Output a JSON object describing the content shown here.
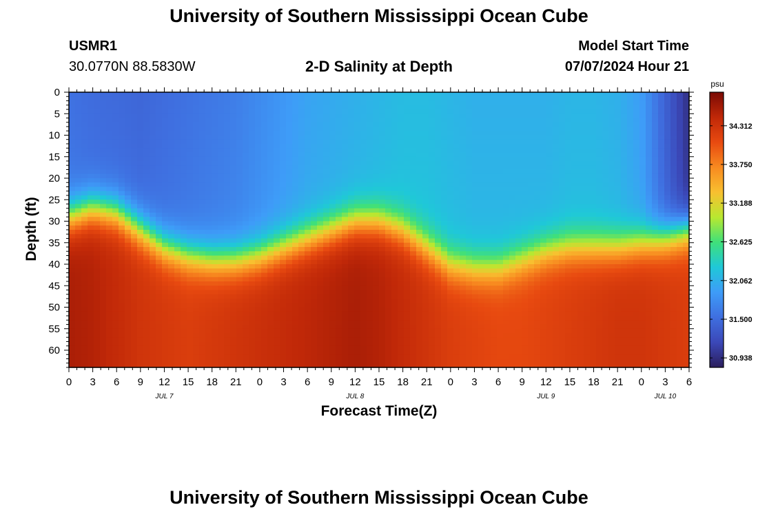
{
  "header": {
    "title": "University of Southern Mississippi Ocean Cube",
    "station_id": "USMR1",
    "station_coords": "30.0770N  88.5830W",
    "plot_title": "2-D Salinity at Depth",
    "model_start_label": "Model Start Time",
    "model_start_value": "07/07/2024 Hour 21"
  },
  "footer": {
    "title": "University of Southern Mississippi Ocean Cube"
  },
  "chart_data": {
    "type": "heatmap",
    "title": "2-D Salinity at Depth",
    "xlabel": "Forecast Time(Z)",
    "ylabel": "Depth (ft)",
    "x_hours_range": [
      0,
      78
    ],
    "x_tick_labels": [
      "0",
      "3",
      "6",
      "9",
      "12",
      "15",
      "18",
      "21",
      "0",
      "3",
      "6",
      "9",
      "12",
      "15",
      "18",
      "21",
      "0",
      "3",
      "6",
      "9",
      "12",
      "15",
      "18",
      "21",
      "0",
      "3",
      "6"
    ],
    "date_labels": [
      {
        "label": "JUL 7",
        "hour": 12
      },
      {
        "label": "JUL 8",
        "hour": 36
      },
      {
        "label": "JUL 9",
        "hour": 60
      },
      {
        "label": "JUL 10",
        "hour": 75
      }
    ],
    "y_range": [
      0,
      64
    ],
    "y_tick_labels": [
      "0",
      "5",
      "10",
      "15",
      "20",
      "25",
      "30",
      "35",
      "40",
      "45",
      "50",
      "55",
      "60"
    ],
    "colorbar": {
      "units": "psu",
      "range": [
        30.8,
        34.8
      ],
      "tick_labels": [
        "34.312",
        "33.750",
        "33.188",
        "32.625",
        "32.062",
        "31.500",
        "30.938"
      ],
      "colors": [
        "#2b1e5c",
        "#3b48b8",
        "#3f6fe0",
        "#3e9cf8",
        "#1fc8d8",
        "#3fe07a",
        "#b8e830",
        "#f8c030",
        "#f88a20",
        "#e84a10",
        "#c02808",
        "#7a0a04"
      ]
    },
    "halocline_depth_profile": {
      "hours": [
        0,
        3,
        6,
        9,
        12,
        15,
        18,
        21,
        24,
        27,
        30,
        33,
        36,
        39,
        42,
        45,
        48,
        51,
        54,
        57,
        60,
        63,
        66,
        69,
        72,
        75,
        78
      ],
      "depth_ft": [
        29,
        27,
        28,
        32,
        36,
        38,
        39,
        39,
        38,
        36,
        34,
        32,
        30,
        30,
        32,
        36,
        40,
        41,
        41,
        39,
        37,
        36,
        36,
        36,
        35,
        34,
        32
      ]
    },
    "surface_salinity_psu": [
      31.55,
      31.5,
      31.48,
      31.45,
      31.5,
      31.55,
      31.6,
      31.65,
      31.75,
      31.85,
      31.95,
      32.0,
      32.05,
      32.1,
      32.15,
      32.15,
      32.1,
      32.05,
      32.05,
      32.05,
      32.05,
      32.1,
      32.1,
      32.05,
      31.9,
      31.4,
      30.95
    ],
    "bottom_salinity_psu": [
      34.55,
      34.5,
      34.4,
      34.3,
      34.25,
      34.2,
      34.25,
      34.3,
      34.35,
      34.4,
      34.45,
      34.5,
      34.55,
      34.5,
      34.4,
      34.3,
      34.2,
      34.15,
      34.1,
      34.1,
      34.15,
      34.2,
      34.25,
      34.3,
      34.3,
      34.25,
      34.2
    ]
  }
}
